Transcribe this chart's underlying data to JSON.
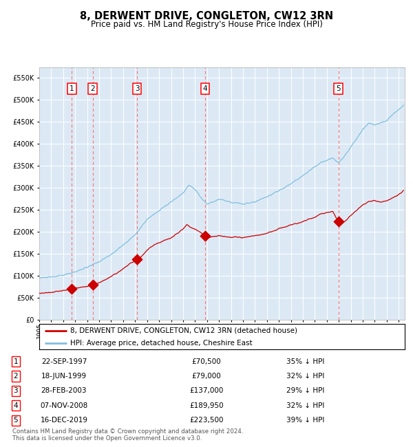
{
  "title": "8, DERWENT DRIVE, CONGLETON, CW12 3RN",
  "subtitle": "Price paid vs. HM Land Registry's House Price Index (HPI)",
  "footer": "Contains HM Land Registry data © Crown copyright and database right 2024.\nThis data is licensed under the Open Government Licence v3.0.",
  "legend_line1": "8, DERWENT DRIVE, CONGLETON, CW12 3RN (detached house)",
  "legend_line2": "HPI: Average price, detached house, Cheshire East",
  "plot_bg": "#dce9f5",
  "hpi_color": "#7fbfdf",
  "price_color": "#cc0000",
  "vline_color": "#ff6666",
  "sales": [
    {
      "num": 1,
      "date_x": 1997.72,
      "price": 70500,
      "label": "22-SEP-1997",
      "pct": "35% ↓ HPI"
    },
    {
      "num": 2,
      "date_x": 1999.46,
      "price": 79000,
      "label": "18-JUN-1999",
      "pct": "32% ↓ HPI"
    },
    {
      "num": 3,
      "date_x": 2003.16,
      "price": 137000,
      "label": "28-FEB-2003",
      "pct": "29% ↓ HPI"
    },
    {
      "num": 4,
      "date_x": 2008.85,
      "price": 189950,
      "label": "07-NOV-2008",
      "pct": "32% ↓ HPI"
    },
    {
      "num": 5,
      "date_x": 2019.96,
      "price": 223500,
      "label": "16-DEC-2019",
      "pct": "39% ↓ HPI"
    }
  ],
  "ylim": [
    0,
    575000
  ],
  "yticks": [
    0,
    50000,
    100000,
    150000,
    200000,
    250000,
    300000,
    350000,
    400000,
    450000,
    500000,
    550000
  ],
  "xlim_start": 1995.0,
  "xlim_end": 2025.5,
  "hpi_keypoints": [
    [
      1995.0,
      95000
    ],
    [
      1996.0,
      97000
    ],
    [
      1997.0,
      101000
    ],
    [
      1998.0,
      109000
    ],
    [
      1999.0,
      119000
    ],
    [
      2000.0,
      132000
    ],
    [
      2001.0,
      148000
    ],
    [
      2002.0,
      170000
    ],
    [
      2003.0,
      193000
    ],
    [
      2004.0,
      228000
    ],
    [
      2005.0,
      248000
    ],
    [
      2006.0,
      268000
    ],
    [
      2007.0,
      288000
    ],
    [
      2007.5,
      307000
    ],
    [
      2008.0,
      296000
    ],
    [
      2008.5,
      278000
    ],
    [
      2009.0,
      263000
    ],
    [
      2009.5,
      268000
    ],
    [
      2010.0,
      274000
    ],
    [
      2011.0,
      268000
    ],
    [
      2012.0,
      263000
    ],
    [
      2013.0,
      268000
    ],
    [
      2014.0,
      279000
    ],
    [
      2015.0,
      294000
    ],
    [
      2016.0,
      309000
    ],
    [
      2017.0,
      328000
    ],
    [
      2018.0,
      348000
    ],
    [
      2018.5,
      358000
    ],
    [
      2019.0,
      363000
    ],
    [
      2019.5,
      368000
    ],
    [
      2020.0,
      358000
    ],
    [
      2020.5,
      373000
    ],
    [
      2021.0,
      393000
    ],
    [
      2021.5,
      413000
    ],
    [
      2022.0,
      433000
    ],
    [
      2022.5,
      448000
    ],
    [
      2023.0,
      443000
    ],
    [
      2023.5,
      448000
    ],
    [
      2024.0,
      453000
    ],
    [
      2024.5,
      468000
    ],
    [
      2025.0,
      478000
    ],
    [
      2025.4,
      488000
    ]
  ],
  "prop_keypoints": [
    [
      1995.0,
      60000
    ],
    [
      1996.0,
      62000
    ],
    [
      1997.0,
      66000
    ],
    [
      1997.72,
      70500
    ],
    [
      1998.0,
      72000
    ],
    [
      1998.5,
      73500
    ],
    [
      1999.0,
      75500
    ],
    [
      1999.46,
      79000
    ],
    [
      1999.8,
      81000
    ],
    [
      2000.0,
      84000
    ],
    [
      2000.5,
      90000
    ],
    [
      2001.0,
      99000
    ],
    [
      2001.5,
      106000
    ],
    [
      2002.0,
      116000
    ],
    [
      2002.5,
      126000
    ],
    [
      2003.16,
      137000
    ],
    [
      2003.5,
      143000
    ],
    [
      2004.0,
      158000
    ],
    [
      2004.5,
      168000
    ],
    [
      2005.0,
      175000
    ],
    [
      2005.5,
      181000
    ],
    [
      2006.0,
      186000
    ],
    [
      2006.5,
      196000
    ],
    [
      2007.0,
      206000
    ],
    [
      2007.3,
      216000
    ],
    [
      2007.6,
      211000
    ],
    [
      2008.0,
      206000
    ],
    [
      2008.5,
      198000
    ],
    [
      2008.85,
      189950
    ],
    [
      2009.0,
      186000
    ],
    [
      2009.5,
      189000
    ],
    [
      2010.0,
      191000
    ],
    [
      2010.5,
      189000
    ],
    [
      2011.0,
      187000
    ],
    [
      2011.5,
      189000
    ],
    [
      2012.0,
      186000
    ],
    [
      2012.5,
      189000
    ],
    [
      2013.0,
      191000
    ],
    [
      2013.5,
      193000
    ],
    [
      2014.0,
      197000
    ],
    [
      2014.5,
      201000
    ],
    [
      2015.0,
      207000
    ],
    [
      2015.5,
      211000
    ],
    [
      2016.0,
      216000
    ],
    [
      2016.5,
      219000
    ],
    [
      2017.0,
      223000
    ],
    [
      2017.5,
      229000
    ],
    [
      2018.0,
      233000
    ],
    [
      2018.5,
      241000
    ],
    [
      2019.0,
      244000
    ],
    [
      2019.5,
      246000
    ],
    [
      2019.96,
      223500
    ],
    [
      2020.0,
      221000
    ],
    [
      2020.2,
      217000
    ],
    [
      2020.5,
      224000
    ],
    [
      2021.0,
      237000
    ],
    [
      2021.5,
      249000
    ],
    [
      2022.0,
      261000
    ],
    [
      2022.5,
      269000
    ],
    [
      2023.0,
      271000
    ],
    [
      2023.5,
      267000
    ],
    [
      2024.0,
      271000
    ],
    [
      2024.5,
      277000
    ],
    [
      2025.0,
      284000
    ],
    [
      2025.4,
      294000
    ]
  ]
}
